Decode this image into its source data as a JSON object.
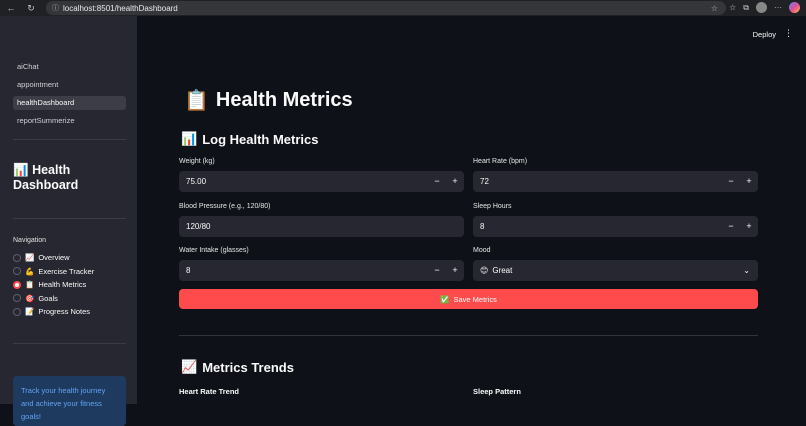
{
  "browser": {
    "url": "localhost:8501/healthDashboard"
  },
  "sidebar": {
    "pages": [
      "aiChat",
      "appointment",
      "healthDashboard",
      "reportSummerize"
    ],
    "active_page": "healthDashboard",
    "title": "Health Dashboard",
    "title_icon": "📊",
    "nav_label": "Navigation",
    "nav_items": [
      {
        "label": "Overview",
        "icon": "📈"
      },
      {
        "label": "Exercise Tracker",
        "icon": "💪"
      },
      {
        "label": "Health Metrics",
        "icon": "📋"
      },
      {
        "label": "Goals",
        "icon": "🎯"
      },
      {
        "label": "Progress Notes",
        "icon": "📝"
      }
    ],
    "selected_nav": "Health Metrics",
    "info_text": "Track your health journey and achieve your fitness goals!"
  },
  "header": {
    "deploy_label": "Deploy"
  },
  "main": {
    "title": "Health Metrics",
    "title_icon": "📋",
    "log_heading": "Log Health Metrics",
    "log_icon": "📊",
    "fields": {
      "weight": {
        "label": "Weight (kg)",
        "value": "75.00"
      },
      "heart_rate": {
        "label": "Heart Rate (bpm)",
        "value": "72"
      },
      "blood_pressure": {
        "label": "Blood Pressure (e.g., 120/80)",
        "value": "120/80"
      },
      "sleep": {
        "label": "Sleep Hours",
        "value": "8"
      },
      "water": {
        "label": "Water Intake (glasses)",
        "value": "8"
      },
      "mood": {
        "label": "Mood",
        "value": "Great",
        "icon": "😊"
      }
    },
    "save_label": "Save Metrics",
    "save_icon": "✅",
    "trends_heading": "Metrics Trends",
    "trends_icon": "📈",
    "heart_trend_label": "Heart Rate Trend",
    "sleep_pattern_label": "Sleep Pattern"
  },
  "colors": {
    "accent": "#ff4b4b",
    "background": "#0e1117",
    "sidebar": "#262730",
    "info_bg": "#1f3a5f",
    "info_text": "#61a3f5"
  }
}
